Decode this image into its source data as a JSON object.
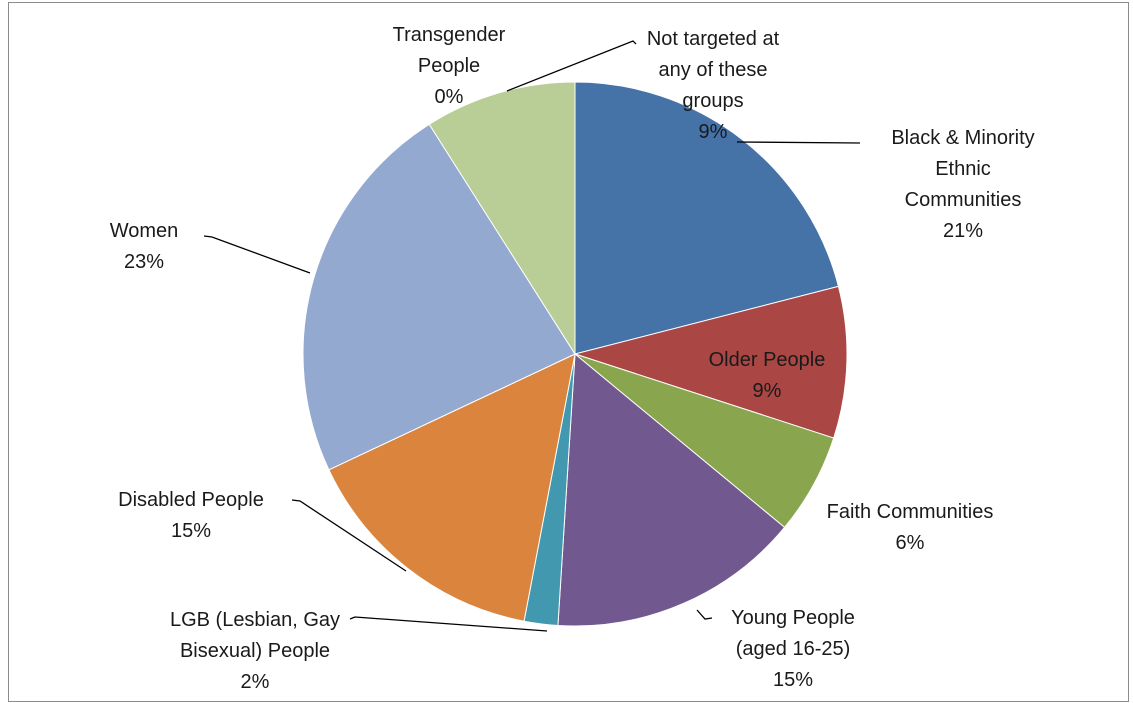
{
  "chart_data": {
    "type": "pie",
    "title": "",
    "slices": [
      {
        "label_lines": [
          "Black & Minority",
          "Ethnic",
          "Communities"
        ],
        "pct_label": "21%",
        "value": 21,
        "color": "#4572a7"
      },
      {
        "label_lines": [
          "Older People"
        ],
        "pct_label": "9%",
        "value": 9,
        "color": "#aa4643"
      },
      {
        "label_lines": [
          "Faith Communities"
        ],
        "pct_label": "6%",
        "value": 6,
        "color": "#89a54e"
      },
      {
        "label_lines": [
          "Young People",
          "(aged 16-25)"
        ],
        "pct_label": "15%",
        "value": 15,
        "color": "#71588f"
      },
      {
        "label_lines": [
          "LGB (Lesbian, Gay",
          "Bisexual) People"
        ],
        "pct_label": "2%",
        "value": 2,
        "color": "#4198af"
      },
      {
        "label_lines": [
          "Disabled People"
        ],
        "pct_label": "15%",
        "value": 15,
        "color": "#db843d"
      },
      {
        "label_lines": [
          "Women"
        ],
        "pct_label": "23%",
        "value": 23,
        "color": "#93a9cf"
      },
      {
        "label_lines": [
          "Transgender",
          "People"
        ],
        "pct_label": "0%",
        "value": 0,
        "color": "#d19392"
      },
      {
        "label_lines": [
          "Not targeted at",
          "any of these",
          "groups"
        ],
        "pct_label": "9%",
        "value": 9,
        "color": "#b9cd96"
      }
    ]
  }
}
